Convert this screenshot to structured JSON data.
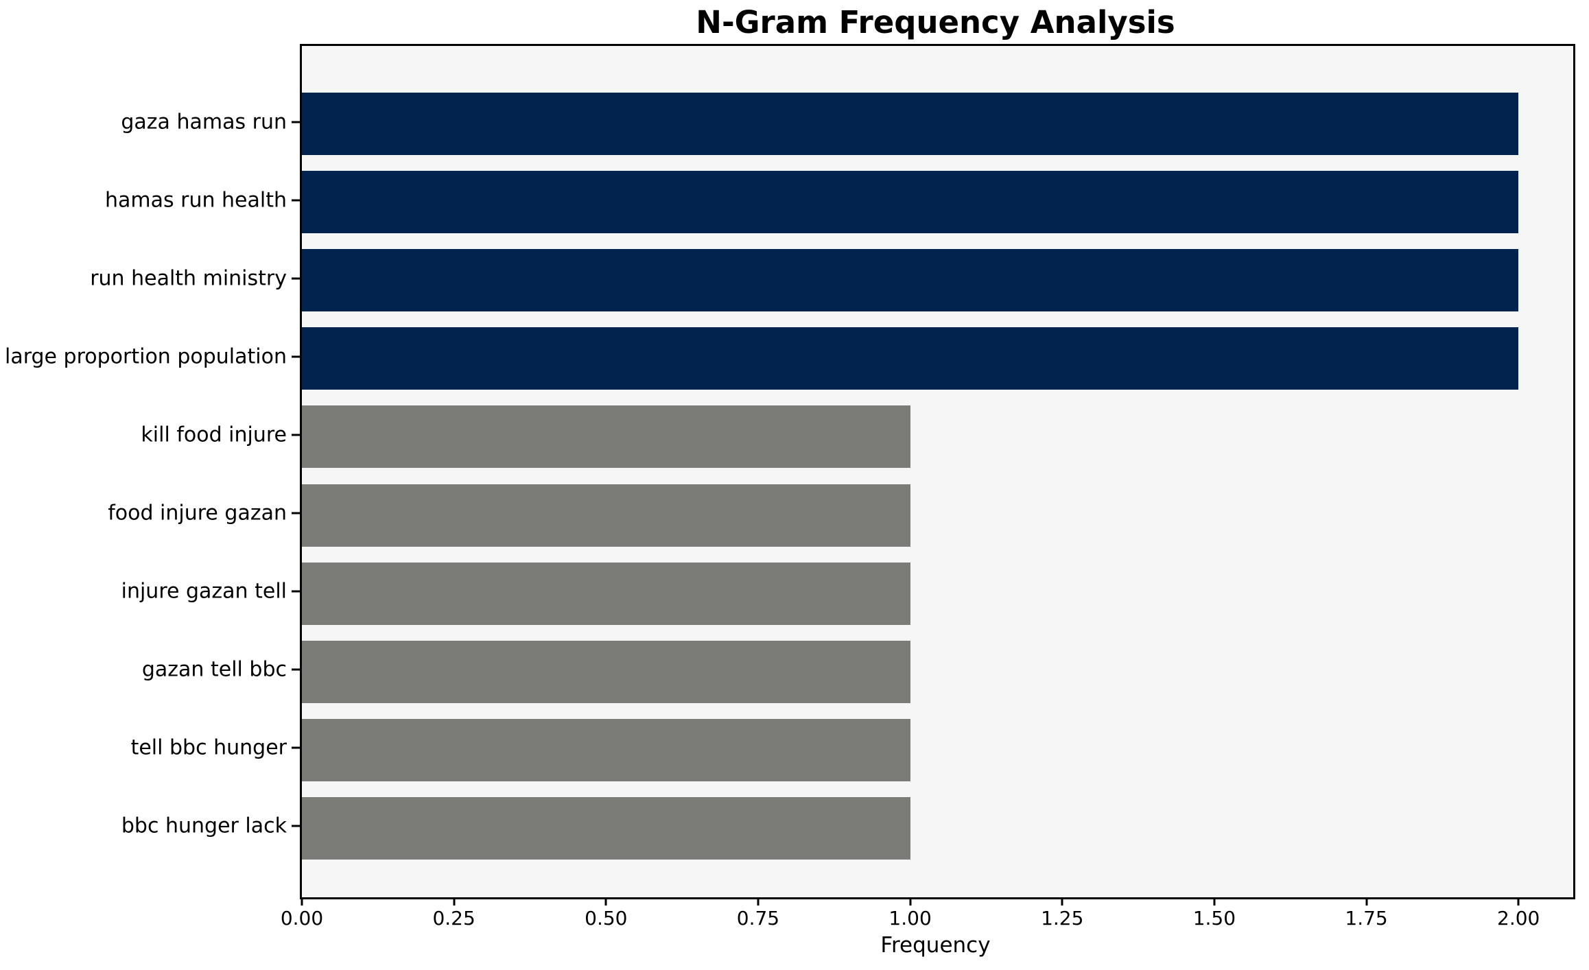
{
  "title": "N-Gram Frequency Analysis",
  "xlabel": "Frequency",
  "colors": {
    "bar_high": "#02234d",
    "bar_low": "#7b7b77",
    "plot_background": "#f6f6f7",
    "axis": "#000000",
    "figure_background": "#ffffff"
  },
  "chart_data": {
    "type": "bar",
    "orientation": "horizontal",
    "title": "N-Gram Frequency Analysis",
    "xlabel": "Frequency",
    "ylabel": "",
    "categories": [
      "gaza hamas run",
      "hamas run health",
      "run health ministry",
      "large proportion population",
      "kill food injure",
      "food injure gazan",
      "injure gazan tell",
      "gazan tell bbc",
      "tell bbc hunger",
      "bbc hunger lack"
    ],
    "values": [
      2,
      2,
      2,
      2,
      1,
      1,
      1,
      1,
      1,
      1
    ],
    "bar_colors": [
      "#02234d",
      "#02234d",
      "#02234d",
      "#02234d",
      "#7b7b77",
      "#7b7b77",
      "#7b7b77",
      "#7b7b77",
      "#7b7b77",
      "#7b7b77"
    ],
    "xlim": [
      0,
      2.09
    ],
    "xticks": [
      "0.00",
      "0.25",
      "0.50",
      "0.75",
      "1.00",
      "1.25",
      "1.50",
      "1.75",
      "2.00"
    ],
    "xtick_values": [
      0,
      0.25,
      0.5,
      0.75,
      1.0,
      1.25,
      1.5,
      1.75,
      2.0
    ],
    "grid": false,
    "legend": null
  }
}
